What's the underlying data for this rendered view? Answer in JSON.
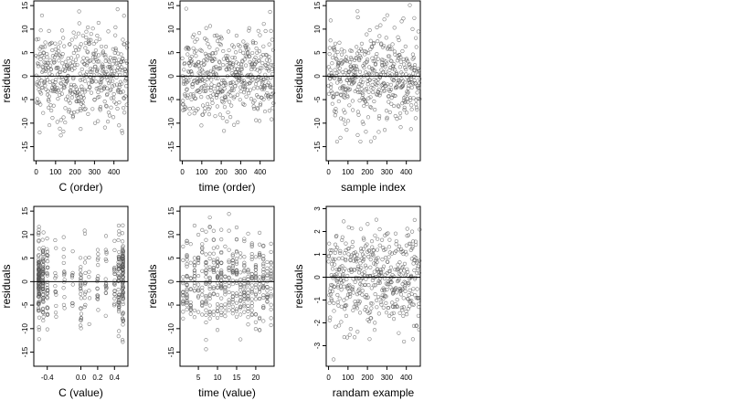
{
  "chart_data": [
    {
      "type": "scatter",
      "panel": "c-order",
      "xlabel": "C (order)",
      "ylabel": "residuals",
      "xticks": [
        0,
        100,
        200,
        300,
        400
      ],
      "xtick_labels": [
        "0",
        "100",
        "200",
        "300",
        "400"
      ],
      "yticks": [
        -15,
        -10,
        -5,
        0,
        5,
        10,
        15
      ],
      "ytick_labels": [
        "-15",
        "-10",
        "-5",
        "0",
        "5",
        "10",
        "15"
      ],
      "xlim": [
        -12,
        472
      ],
      "ylim": [
        -18,
        16
      ],
      "hline": 0,
      "n_points": 470,
      "x_kind": "index"
    },
    {
      "type": "scatter",
      "panel": "time-order",
      "xlabel": "time (order)",
      "ylabel": "residuals",
      "xticks": [
        0,
        100,
        200,
        300,
        400
      ],
      "xtick_labels": [
        "0",
        "100",
        "200",
        "300",
        "400"
      ],
      "yticks": [
        -15,
        -10,
        -5,
        0,
        5,
        10,
        15
      ],
      "ytick_labels": [
        "-15",
        "-10",
        "-5",
        "0",
        "5",
        "10",
        "15"
      ],
      "xlim": [
        -12,
        472
      ],
      "ylim": [
        -18,
        16
      ],
      "hline": 0,
      "n_points": 470,
      "x_kind": "index"
    },
    {
      "type": "scatter",
      "panel": "sample-index",
      "xlabel": "sample index",
      "ylabel": "residuals",
      "xticks": [
        0,
        100,
        200,
        300,
        400
      ],
      "xtick_labels": [
        "0",
        "100",
        "200",
        "300",
        "400"
      ],
      "yticks": [
        -15,
        -10,
        -5,
        0,
        5,
        10,
        15
      ],
      "ytick_labels": [
        "-15",
        "-10",
        "-5",
        "0",
        "5",
        "10",
        "15"
      ],
      "xlim": [
        -12,
        472
      ],
      "ylim": [
        -18,
        16
      ],
      "hline": 0,
      "n_points": 470,
      "x_kind": "index"
    },
    {
      "type": "scatter",
      "panel": "c-value",
      "xlabel": "C (value)",
      "ylabel": "residuals",
      "xticks": [
        -0.4,
        0.0,
        0.2,
        0.4
      ],
      "xtick_labels": [
        "-0.4",
        "0.0",
        "0.2",
        "0.4"
      ],
      "yticks": [
        -15,
        -10,
        -5,
        0,
        5,
        10,
        15
      ],
      "ytick_labels": [
        "-15",
        "-10",
        "-5",
        "0",
        "5",
        "10",
        "15"
      ],
      "xlim": [
        -0.56,
        0.56
      ],
      "ylim": [
        -18,
        16
      ],
      "hline": 0,
      "n_points": 470,
      "x_kind": "c_value"
    },
    {
      "type": "scatter",
      "panel": "time-value",
      "xlabel": "time (value)",
      "ylabel": "residuals",
      "xticks": [
        5,
        10,
        15,
        20
      ],
      "xtick_labels": [
        "5",
        "10",
        "15",
        "20"
      ],
      "yticks": [
        -15,
        -10,
        -5,
        0,
        5,
        10,
        15
      ],
      "ytick_labels": [
        "-15",
        "-10",
        "-5",
        "0",
        "5",
        "10",
        "15"
      ],
      "xlim": [
        0.2,
        24.8
      ],
      "ylim": [
        -18,
        16
      ],
      "hline": 0,
      "n_points": 470,
      "x_kind": "time_value"
    },
    {
      "type": "scatter",
      "panel": "random-example",
      "xlabel": "randam example",
      "ylabel": "residuals",
      "xticks": [
        0,
        100,
        200,
        300,
        400
      ],
      "xtick_labels": [
        "0",
        "100",
        "200",
        "300",
        "400"
      ],
      "yticks": [
        -3,
        -2,
        -1,
        0,
        1,
        2,
        3
      ],
      "ytick_labels": [
        "-3",
        "-2",
        "-1",
        "0",
        "1",
        "2",
        "3"
      ],
      "xlim": [
        -12,
        472
      ],
      "ylim": [
        -3.9,
        3.1
      ],
      "hline": 0,
      "n_points": 470,
      "x_kind": "index"
    }
  ]
}
